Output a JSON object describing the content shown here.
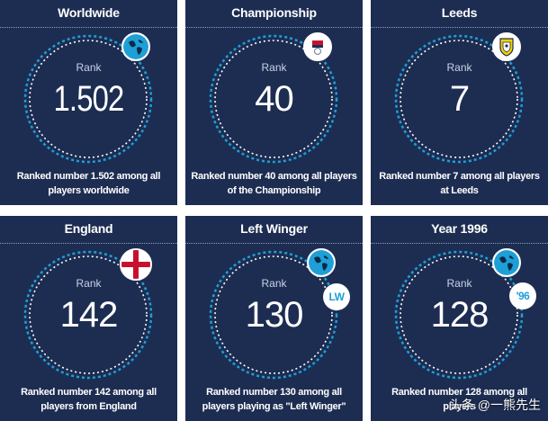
{
  "cards": [
    {
      "title": "Worldwide",
      "rank_label": "Rank",
      "value": "1.502",
      "desc": "Ranked number 1.502 among all players worldwide",
      "icon": "globe-icon"
    },
    {
      "title": "Championship",
      "rank_label": "Rank",
      "value": "40",
      "desc": "Ranked number 40 among all players of the Championship",
      "icon": "championship-logo-icon"
    },
    {
      "title": "Leeds",
      "rank_label": "Rank",
      "value": "7",
      "desc": "Ranked number 7 among all players at Leeds",
      "icon": "leeds-crest-icon"
    },
    {
      "title": "England",
      "rank_label": "Rank",
      "value": "142",
      "desc": "Ranked number 142 among all players from England",
      "icon": "england-flag-icon"
    },
    {
      "title": "Left Winger",
      "rank_label": "Rank",
      "value": "130",
      "desc": "Ranked number 130 among all players playing as \"Left Winger\"",
      "icon": "globe-icon",
      "badge": "LW"
    },
    {
      "title": "Year 1996",
      "rank_label": "Rank",
      "value": "128",
      "desc": "Ranked number 128 among all players",
      "icon": "globe-icon",
      "badge": "'96"
    }
  ],
  "watermark": "头条 @一熊先生",
  "colors": {
    "card_bg": "#1d2d52",
    "ring": "#1e9fd6",
    "accent": "#1e9fd6"
  }
}
